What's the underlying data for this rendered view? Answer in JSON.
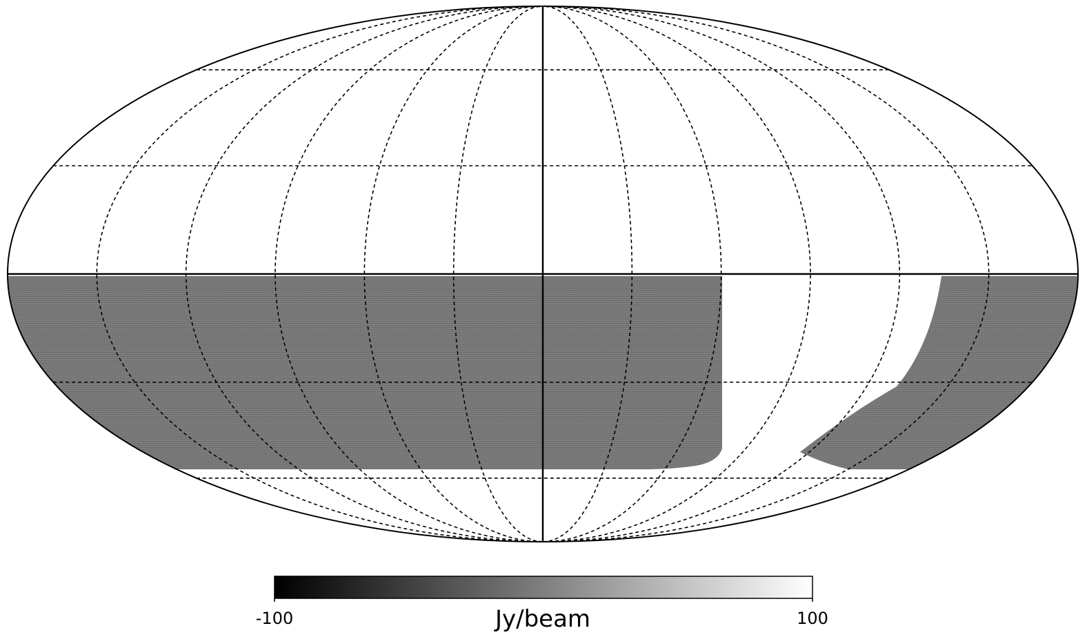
{
  "colorbar": {
    "label": "Jy/beam",
    "min": -100,
    "max": 100,
    "ticks": [
      -100,
      100
    ]
  }
}
